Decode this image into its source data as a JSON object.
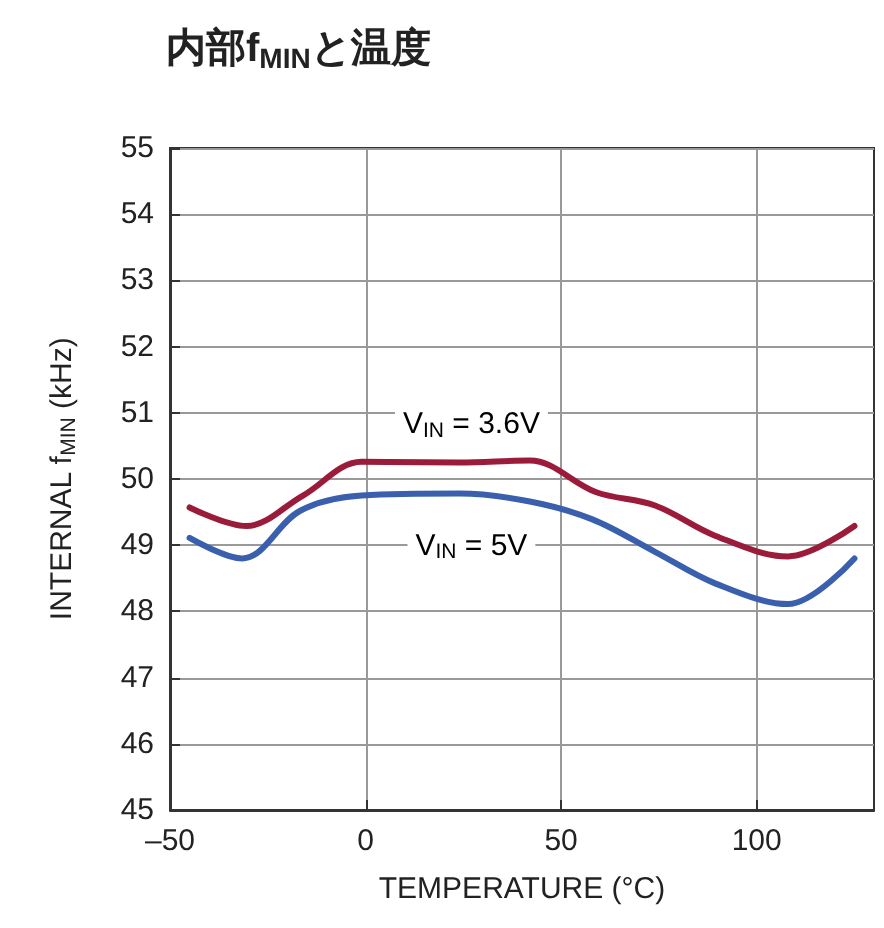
{
  "chart_data": {
    "type": "line",
    "title": "内部f$_{MIN}$と温度",
    "xlabel": "TEMPERATURE (°C)",
    "ylabel": "INTERNAL f$_{MIN}$ (kHz)",
    "series": [
      {
        "color": "#9b1b3a",
        "x": [
          -45,
          -30.5,
          -16,
          -1,
          24,
          42,
          59,
          74,
          89.5,
          108,
          125
        ],
        "values": [
          49.57,
          49.29,
          49.75,
          50.26,
          50.25,
          50.28,
          49.8,
          49.6,
          49.14,
          48.83,
          49.29
        ]
      },
      {
        "color": "#3a5fad",
        "x": [
          -45,
          -31.5,
          -16.7,
          -1,
          24,
          42,
          58,
          74,
          89.5,
          108,
          125
        ],
        "values": [
          49.11,
          48.8,
          49.52,
          49.75,
          49.78,
          49.66,
          49.39,
          48.9,
          48.42,
          48.11,
          48.8
        ]
      }
    ],
    "annotations": [
      "V$_{IN}$ = 3.6V",
      "V$_{IN}$ = 5V"
    ],
    "xlim": [
      -50,
      130
    ],
    "xticks": [
      {
        "value": -50,
        "label": "–50"
      },
      0,
      50,
      100
    ],
    "ylim": [
      45,
      55
    ],
    "yticks": [
      45,
      46,
      47,
      48,
      49,
      50,
      51,
      52,
      53,
      54,
      55
    ],
    "grid": true,
    "marker": "none",
    "line_style": "solid"
  }
}
